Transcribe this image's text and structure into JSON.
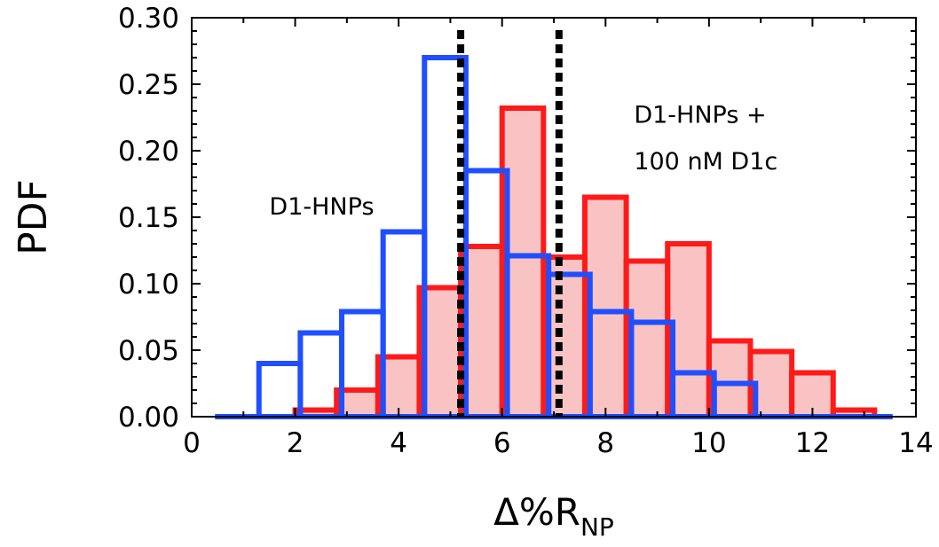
{
  "chart_data": {
    "type": "bar",
    "xlabel": "Δ%R",
    "xlabel_subscript": "NP",
    "ylabel": "PDF",
    "xlim": [
      0,
      14
    ],
    "ylim": [
      0,
      0.3
    ],
    "xticks": [
      "0",
      "2",
      "4",
      "6",
      "8",
      "10",
      "12",
      "14"
    ],
    "yticks": [
      "0.00",
      "0.05",
      "0.10",
      "0.15",
      "0.20",
      "0.25",
      "0.30"
    ],
    "grid": false,
    "colors": {
      "blue": "#1f4fff",
      "red": "#ff1a1a",
      "red_fill": "#f9c3c3",
      "line": "#000000"
    },
    "bin_width": 0.8,
    "series": [
      {
        "name": "D1-HNPs + 100 nM D1c",
        "style": "filled",
        "bins": [
          {
            "x": 2.0,
            "y": 0.005
          },
          {
            "x": 2.8,
            "y": 0.02
          },
          {
            "x": 3.6,
            "y": 0.045
          },
          {
            "x": 4.4,
            "y": 0.097
          },
          {
            "x": 5.2,
            "y": 0.128
          },
          {
            "x": 6.0,
            "y": 0.232
          },
          {
            "x": 6.8,
            "y": 0.12
          },
          {
            "x": 7.6,
            "y": 0.165
          },
          {
            "x": 8.4,
            "y": 0.117
          },
          {
            "x": 9.2,
            "y": 0.13
          },
          {
            "x": 10.0,
            "y": 0.057
          },
          {
            "x": 10.8,
            "y": 0.049
          },
          {
            "x": 11.6,
            "y": 0.033
          },
          {
            "x": 12.4,
            "y": 0.005
          }
        ]
      },
      {
        "name": "D1-HNPs",
        "style": "outline",
        "bins": [
          {
            "x": 1.3,
            "y": 0.04
          },
          {
            "x": 2.1,
            "y": 0.063
          },
          {
            "x": 2.9,
            "y": 0.079
          },
          {
            "x": 3.7,
            "y": 0.139
          },
          {
            "x": 4.5,
            "y": 0.27
          },
          {
            "x": 5.3,
            "y": 0.185
          },
          {
            "x": 6.1,
            "y": 0.121
          },
          {
            "x": 6.9,
            "y": 0.107
          },
          {
            "x": 7.7,
            "y": 0.079
          },
          {
            "x": 8.5,
            "y": 0.071
          },
          {
            "x": 9.3,
            "y": 0.033
          },
          {
            "x": 10.1,
            "y": 0.025
          }
        ]
      }
    ],
    "baseline": [
      0.45,
      13.55
    ],
    "vlines": [
      5.2,
      7.1
    ],
    "annotations": [
      {
        "text": "D1-HNPs",
        "x": 1.5,
        "y": 0.152
      },
      {
        "text": "D1-HNPs +",
        "x": 8.55,
        "y": 0.221
      },
      {
        "text": "100 nM D1c",
        "x": 8.55,
        "y": 0.186
      }
    ]
  }
}
